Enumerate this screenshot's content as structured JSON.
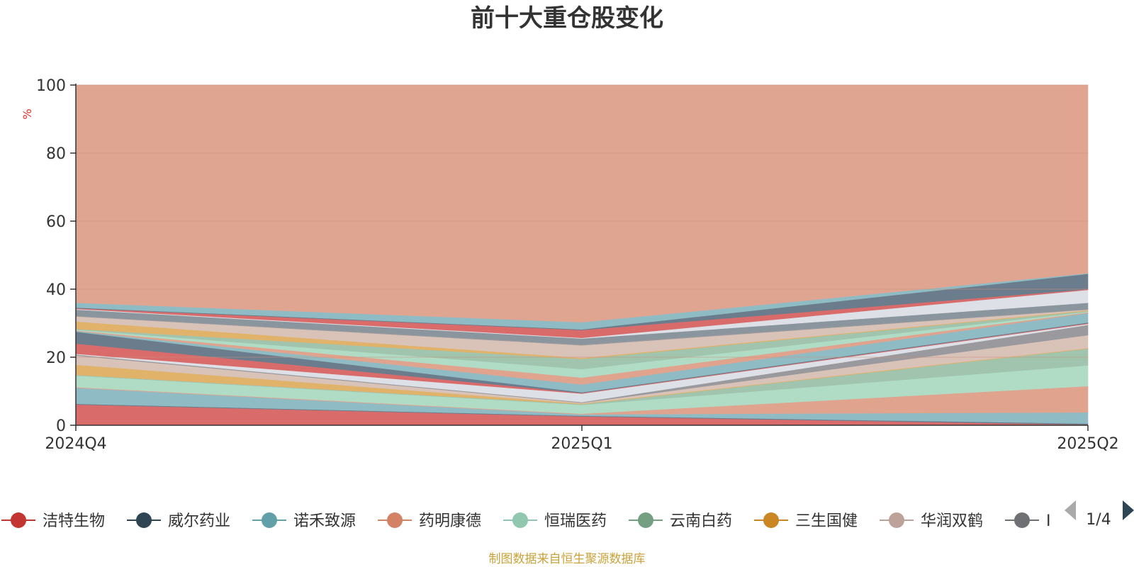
{
  "chart_data": {
    "type": "area",
    "title": "前十大重仓股变化",
    "unit_label": "%",
    "categories": [
      "2024Q4",
      "2025Q1",
      "2025Q2"
    ],
    "ylim": [
      0,
      100
    ],
    "yticks": [
      0,
      20,
      40,
      60,
      80,
      100
    ],
    "grid": true,
    "stacked_boundaries": [
      {
        "color": "#d96b6b",
        "values": [
          6.1,
          2.6,
          0.2
        ]
      },
      {
        "color": "#6b7d8c",
        "values": [
          6.3,
          2.8,
          0.5
        ]
      },
      {
        "color": "#8fbcc4",
        "values": [
          11.0,
          3.2,
          3.8
        ]
      },
      {
        "color": "#e0a38e",
        "values": [
          11.2,
          3.4,
          11.5
        ]
      },
      {
        "color": "#b0dcc6",
        "values": [
          14.6,
          6.0,
          17.6
        ]
      },
      {
        "color": "#a0c4ae",
        "values": [
          14.8,
          6.2,
          22.5
        ]
      },
      {
        "color": "#e0b26a",
        "values": [
          17.8,
          6.4,
          22.7
        ]
      },
      {
        "color": "#d9c3b8",
        "values": [
          20.5,
          6.6,
          26.5
        ]
      },
      {
        "color": "#9a9a9e",
        "values": [
          20.8,
          6.8,
          29.5
        ]
      },
      {
        "color": "#dde0e6",
        "values": [
          21.0,
          9.3,
          29.8
        ]
      },
      {
        "color": "#d96b6b",
        "values": [
          24.0,
          9.5,
          30.0
        ]
      },
      {
        "color": "#6b7d8c",
        "values": [
          27.5,
          9.7,
          30.2
        ]
      },
      {
        "color": "#8fbcc4",
        "values": [
          27.7,
          12.0,
          33.0
        ]
      },
      {
        "color": "#e0a38e",
        "values": [
          27.9,
          14.0,
          33.2
        ]
      },
      {
        "color": "#b0dcc6",
        "values": [
          28.1,
          16.5,
          33.4
        ]
      },
      {
        "color": "#a0c4ae",
        "values": [
          28.3,
          19.5,
          33.6
        ]
      },
      {
        "color": "#e0b26a",
        "values": [
          30.5,
          19.8,
          33.8
        ]
      },
      {
        "color": "#d9c3b8",
        "values": [
          32.0,
          23.5,
          34.0
        ]
      },
      {
        "color": "#9a9a9e",
        "values": [
          32.2,
          23.8,
          34.2
        ]
      },
      {
        "color": "#8a959d",
        "values": [
          34.0,
          25.5,
          36.0
        ]
      },
      {
        "color": "#dde0e6",
        "values": [
          34.2,
          25.7,
          39.8
        ]
      },
      {
        "color": "#d96b6b",
        "values": [
          34.4,
          28.0,
          40.0
        ]
      },
      {
        "color": "#6b7d8c",
        "values": [
          34.6,
          28.2,
          44.5
        ]
      },
      {
        "color": "#8fbcc4",
        "values": [
          36.0,
          30.3,
          44.7
        ]
      },
      {
        "color": "#e0a591",
        "values": [
          100,
          100,
          100
        ]
      }
    ],
    "legend": [
      {
        "name": "洁特生物",
        "color": "#c23531"
      },
      {
        "name": "威尔药业",
        "color": "#2f4554"
      },
      {
        "name": "诺禾致源",
        "color": "#61a0a8"
      },
      {
        "name": "药明康德",
        "color": "#d48265"
      },
      {
        "name": "恒瑞医药",
        "color": "#91c7ae"
      },
      {
        "name": "云南白药",
        "color": "#749f83"
      },
      {
        "name": "三生国健",
        "color": "#ca8622"
      },
      {
        "name": "华润双鹤",
        "color": "#bda29a"
      },
      {
        "name": "I",
        "color": "#6e7074"
      }
    ],
    "legend_page": "1/4"
  },
  "footer": {
    "source": "制图数据来自恒生聚源数据库"
  },
  "colors": {
    "axis": "#333333",
    "grid": "#c98f7c",
    "page_arrow_active": "#2f4554",
    "page_arrow_inactive": "#aaaaaa"
  }
}
